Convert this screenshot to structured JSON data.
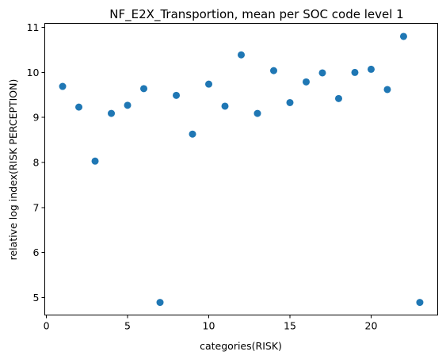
{
  "chart_data": {
    "type": "scatter",
    "title": "NF_E2X_Transportion, mean per SOC code level 1",
    "xlabel": "categories(RISK)",
    "ylabel": "relative log index(RISK PERCEPTION)",
    "xlim": [
      -0.1,
      24.1
    ],
    "ylim": [
      4.61,
      11.09
    ],
    "xticks": [
      0,
      5,
      10,
      15,
      20
    ],
    "yticks": [
      5,
      6,
      7,
      8,
      9,
      10,
      11
    ],
    "grid": false,
    "marker_color": "#1f77b4",
    "x": [
      1,
      2,
      3,
      4,
      5,
      6,
      7,
      8,
      9,
      10,
      11,
      12,
      13,
      14,
      15,
      16,
      17,
      18,
      19,
      20,
      21,
      22,
      23
    ],
    "y": [
      9.69,
      9.23,
      8.03,
      9.09,
      9.27,
      9.64,
      4.89,
      9.49,
      8.63,
      9.74,
      9.25,
      10.39,
      9.09,
      10.04,
      9.33,
      9.79,
      9.99,
      9.42,
      10.0,
      10.07,
      9.62,
      10.8,
      4.89
    ]
  }
}
